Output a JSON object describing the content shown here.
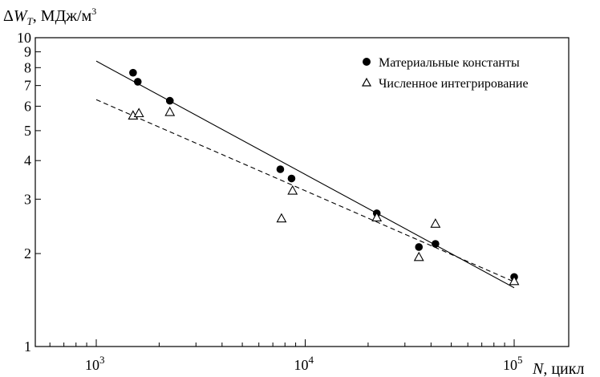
{
  "chart_data": {
    "type": "scatter",
    "ylabel": {
      "delta": "Δ",
      "symbol": "W",
      "subscript": "T",
      "rest": ", МДж/м",
      "superscript": "3"
    },
    "xlabel": {
      "symbol": "N",
      "rest": ", цикл"
    },
    "x_scale": "log",
    "y_scale": "log",
    "xlim": [
      500,
      300000
    ],
    "ylim": [
      1,
      10
    ],
    "x_ticks": [
      {
        "value": 1000,
        "base": "10",
        "exp": "3"
      },
      {
        "value": 10000,
        "base": "10",
        "exp": "4"
      },
      {
        "value": 100000,
        "base": "10",
        "exp": "5"
      }
    ],
    "y_tick_labels": [
      {
        "value": 1,
        "label": "1"
      },
      {
        "value": 2,
        "label": "2"
      },
      {
        "value": 3,
        "label": "3"
      },
      {
        "value": 4,
        "label": "4"
      },
      {
        "value": 5,
        "label": "5"
      },
      {
        "value": 6,
        "label": "6"
      },
      {
        "value": 7,
        "label": "7"
      },
      {
        "value": 8,
        "label": "8"
      },
      {
        "value": 9,
        "label": "9"
      },
      {
        "value": 10,
        "label": "10"
      }
    ],
    "legend_position": "top-right",
    "series": [
      {
        "name": "Материальные константы",
        "marker": "filled-circle",
        "line": "solid",
        "points": [
          {
            "x": 1500,
            "y": 7.7
          },
          {
            "x": 1580,
            "y": 7.2
          },
          {
            "x": 2250,
            "y": 6.25
          },
          {
            "x": 7600,
            "y": 3.75
          },
          {
            "x": 8600,
            "y": 3.5
          },
          {
            "x": 22000,
            "y": 2.7
          },
          {
            "x": 35000,
            "y": 2.1
          },
          {
            "x": 42000,
            "y": 2.15
          },
          {
            "x": 100000,
            "y": 1.68
          }
        ],
        "fit": {
          "x": [
            1000,
            100000
          ],
          "y": [
            8.4,
            1.55
          ]
        }
      },
      {
        "name": "Численное интегрирование",
        "marker": "open-triangle",
        "line": "dashed",
        "points": [
          {
            "x": 1500,
            "y": 5.6
          },
          {
            "x": 1600,
            "y": 5.7
          },
          {
            "x": 2250,
            "y": 5.75
          },
          {
            "x": 7700,
            "y": 2.6
          },
          {
            "x": 8700,
            "y": 3.2
          },
          {
            "x": 22000,
            "y": 2.62
          },
          {
            "x": 35000,
            "y": 1.95
          },
          {
            "x": 42000,
            "y": 2.5
          },
          {
            "x": 100000,
            "y": 1.63
          }
        ],
        "fit": {
          "x": [
            1000,
            100000
          ],
          "y": [
            6.3,
            1.62
          ]
        }
      }
    ]
  }
}
